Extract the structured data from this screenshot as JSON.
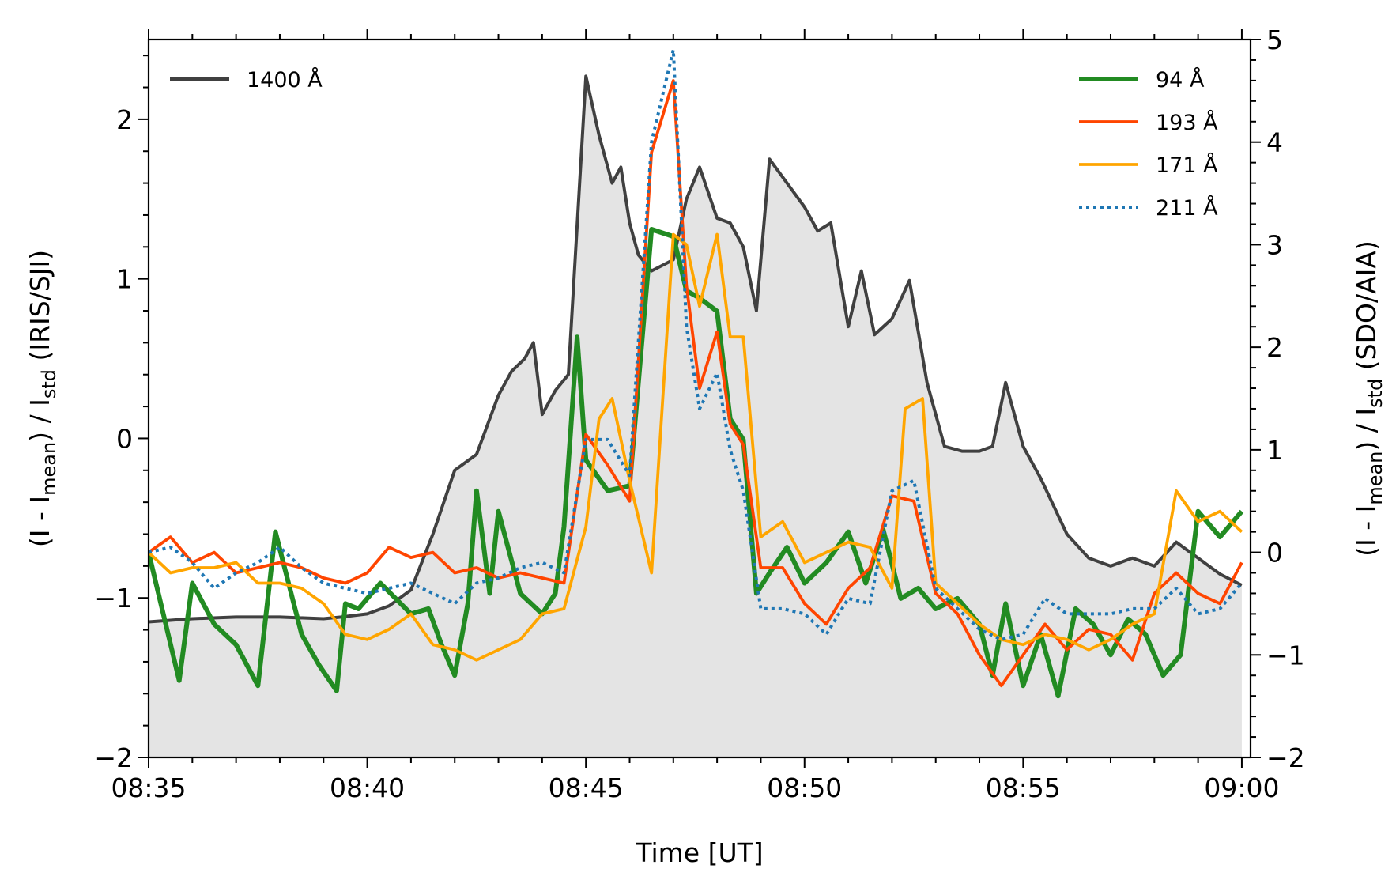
{
  "chart_data": {
    "type": "line",
    "xlabel": "Time [UT]",
    "ylabel_left": {
      "main": "(I - I",
      "sub1": "mean",
      "mid": ") / I",
      "sub2": "std",
      "end": " (IRIS/SJI)"
    },
    "ylabel_right": {
      "main": "(I - I",
      "sub1": "mean",
      "mid": ") / I",
      "sub2": "std",
      "end": " (SDO/AIA)"
    },
    "x_range": [
      "08:35",
      "09:00"
    ],
    "x_ticks": [
      "08:35",
      "08:40",
      "08:45",
      "08:50",
      "08:55",
      "09:00"
    ],
    "y_left_range": [
      -2,
      2.5
    ],
    "y_left_ticks": [
      "−2",
      "−1",
      "0",
      "1",
      "2"
    ],
    "y_right_range": [
      -2,
      5
    ],
    "y_right_ticks": [
      "−2",
      "−1",
      "0",
      "1",
      "2",
      "3",
      "4",
      "5"
    ],
    "legend_left": {
      "position": "top-left",
      "entries": [
        "1400 Å"
      ]
    },
    "legend_right": {
      "position": "top-right",
      "entries": [
        "94 Å",
        "193 Å",
        "171 Å",
        "211 Å"
      ]
    },
    "colors": {
      "s1400": "#404040",
      "fill1400": "#e4e4e4",
      "s94": "#228b22",
      "s193": "#ff4500",
      "s171": "#ffa500",
      "s211": "#1f77b4"
    },
    "series": [
      {
        "name": "1400 Å",
        "axis": "left",
        "fill": true,
        "x": [
          "08:35",
          "08:36",
          "08:37",
          "08:38",
          "08:39",
          "08:39.4",
          "08:40",
          "08:40.5",
          "08:41",
          "08:41.5",
          "08:42",
          "08:42.5",
          "08:43",
          "08:43.3",
          "08:43.6",
          "08:43.8",
          "08:44",
          "08:44.3",
          "08:44.6",
          "08:45",
          "08:45.3",
          "08:45.6",
          "08:45.8",
          "08:46",
          "08:46.2",
          "08:46.5",
          "08:47",
          "08:47.3",
          "08:47.6",
          "08:48",
          "08:48.3",
          "08:48.6",
          "08:48.9",
          "08:49.2",
          "08:49.6",
          "08:50",
          "08:50.3",
          "08:50.6",
          "08:51",
          "08:51.3",
          "08:51.6",
          "08:52",
          "08:52.4",
          "08:52.8",
          "08:53.2",
          "08:53.6",
          "08:54",
          "08:54.3",
          "08:54.6",
          "08:55",
          "08:55.4",
          "08:56",
          "08:56.5",
          "08:57",
          "08:57.5",
          "08:58",
          "08:58.5",
          "08:59",
          "08:59.5",
          "09:00"
        ],
        "y": [
          -1.15,
          -1.13,
          -1.12,
          -1.12,
          -1.13,
          -1.12,
          -1.1,
          -1.05,
          -0.95,
          -0.6,
          -0.2,
          -0.1,
          0.27,
          0.42,
          0.5,
          0.6,
          0.15,
          0.3,
          0.4,
          2.27,
          1.9,
          1.6,
          1.7,
          1.35,
          1.15,
          1.05,
          1.12,
          1.5,
          1.7,
          1.38,
          1.35,
          1.2,
          0.8,
          1.75,
          1.6,
          1.45,
          1.3,
          1.35,
          0.7,
          1.05,
          0.65,
          0.75,
          0.99,
          0.35,
          -0.05,
          -0.08,
          -0.08,
          -0.05,
          0.35,
          -0.05,
          -0.25,
          -0.6,
          -0.75,
          -0.8,
          -0.75,
          -0.8,
          -0.65,
          -0.75,
          -0.85,
          -0.92
        ]
      },
      {
        "name": "94 Å",
        "axis": "right",
        "x": [
          "08:35",
          "08:35.7",
          "08:36",
          "08:36.5",
          "08:37",
          "08:37.5",
          "08:37.9",
          "08:38.5",
          "08:38.9",
          "08:39.3",
          "08:39.5",
          "08:39.8",
          "08:40.3",
          "08:41",
          "08:41.4",
          "08:41.7",
          "08:42",
          "08:42.3",
          "08:42.5",
          "08:42.8",
          "08:43",
          "08:43.5",
          "08:44",
          "08:44.3",
          "08:44.5",
          "08:44.8",
          "08:45",
          "08:45.5",
          "08:46",
          "08:46.5",
          "08:47",
          "08:47.3",
          "08:47.6",
          "08:48",
          "08:48.3",
          "08:48.6",
          "08:48.9",
          "08:49.2",
          "08:49.6",
          "08:50",
          "08:50.5",
          "08:51",
          "08:51.4",
          "08:51.8",
          "08:52.2",
          "08:52.6",
          "08:53",
          "08:53.5",
          "08:54",
          "08:54.3",
          "08:54.6",
          "08:55",
          "08:55.4",
          "08:55.8",
          "08:56.2",
          "08:56.6",
          "08:57",
          "08:57.4",
          "08:57.8",
          "08:58.2",
          "08:58.6",
          "08:59",
          "08:59.5",
          "09:00"
        ],
        "y": [
          0,
          -1.25,
          -0.3,
          -0.7,
          -0.9,
          -1.3,
          0.2,
          -0.8,
          -1.1,
          -1.35,
          -0.5,
          -0.55,
          -0.3,
          -0.6,
          -0.55,
          -0.9,
          -1.2,
          -0.5,
          0.6,
          -0.4,
          0.4,
          -0.4,
          -0.6,
          -0.4,
          0.25,
          2.1,
          0.9,
          0.6,
          0.65,
          3.15,
          3.08,
          2.55,
          2.48,
          2.35,
          1.3,
          1.1,
          -0.4,
          -0.2,
          0.05,
          -0.3,
          -0.1,
          0.2,
          -0.3,
          0.22,
          -0.45,
          -0.35,
          -0.55,
          -0.45,
          -0.7,
          -1.2,
          -0.5,
          -1.3,
          -0.8,
          -1.4,
          -0.55,
          -0.7,
          -1.0,
          -0.65,
          -0.8,
          -1.2,
          -1.0,
          0.4,
          0.15,
          0.4
        ]
      },
      {
        "name": "193 Å",
        "axis": "right",
        "x": [
          "08:35",
          "08:35.5",
          "08:36",
          "08:36.5",
          "08:37",
          "08:37.5",
          "08:38",
          "08:38.5",
          "08:39",
          "08:39.5",
          "08:40",
          "08:40.5",
          "08:41",
          "08:41.5",
          "08:42",
          "08:42.5",
          "08:43",
          "08:43.5",
          "08:44",
          "08:44.5",
          "08:45",
          "08:45.5",
          "08:46",
          "08:46.5",
          "08:47",
          "08:47.3",
          "08:47.6",
          "08:48",
          "08:48.3",
          "08:48.6",
          "08:49",
          "08:49.5",
          "08:50",
          "08:50.5",
          "08:51",
          "08:51.5",
          "08:52",
          "08:52.5",
          "08:53",
          "08:53.5",
          "08:54",
          "08:54.5",
          "08:55",
          "08:55.5",
          "08:56",
          "08:56.5",
          "08:57",
          "08:57.5",
          "08:58",
          "08:58.5",
          "08:59",
          "08:59.5",
          "09:00"
        ],
        "y": [
          0,
          0.15,
          -0.1,
          0,
          -0.2,
          -0.15,
          -0.1,
          -0.15,
          -0.25,
          -0.3,
          -0.2,
          0.05,
          -0.05,
          0,
          -0.2,
          -0.15,
          -0.25,
          -0.2,
          -0.25,
          -0.3,
          1.15,
          0.85,
          0.5,
          3.9,
          4.6,
          2.6,
          1.6,
          2.15,
          1.25,
          1.05,
          -0.15,
          -0.15,
          -0.5,
          -0.7,
          -0.35,
          -0.15,
          0.55,
          0.5,
          -0.4,
          -0.6,
          -1.0,
          -1.3,
          -1.0,
          -0.7,
          -0.95,
          -0.75,
          -0.8,
          -1.05,
          -0.4,
          -0.2,
          -0.4,
          -0.5,
          -0.1
        ]
      },
      {
        "name": "171 Å",
        "axis": "right",
        "x": [
          "08:35",
          "08:35.5",
          "08:36",
          "08:36.5",
          "08:37",
          "08:37.5",
          "08:38",
          "08:38.5",
          "08:39",
          "08:39.5",
          "08:40",
          "08:40.5",
          "08:41",
          "08:41.5",
          "08:42",
          "08:42.5",
          "08:43",
          "08:43.5",
          "08:44",
          "08:44.5",
          "08:45",
          "08:45.3",
          "08:45.6",
          "08:46",
          "08:46.5",
          "08:47",
          "08:47.3",
          "08:47.6",
          "08:48",
          "08:48.3",
          "08:48.6",
          "08:49",
          "08:49.5",
          "08:50",
          "08:50.5",
          "08:51",
          "08:51.5",
          "08:52",
          "08:52.3",
          "08:52.7",
          "08:53",
          "08:53.5",
          "08:54",
          "08:54.5",
          "08:55",
          "08:55.5",
          "08:56",
          "08:56.5",
          "08:57",
          "08:57.5",
          "08:58",
          "08:58.5",
          "08:59",
          "08:59.5",
          "09:00"
        ],
        "y": [
          0,
          -0.2,
          -0.15,
          -0.15,
          -0.1,
          -0.3,
          -0.3,
          -0.35,
          -0.5,
          -0.8,
          -0.85,
          -0.75,
          -0.6,
          -0.9,
          -0.95,
          -1.05,
          -0.95,
          -0.85,
          -0.6,
          -0.55,
          0.25,
          1.3,
          1.5,
          0.7,
          -0.2,
          3.1,
          3.0,
          2.4,
          3.1,
          2.1,
          2.1,
          0.15,
          0.3,
          -0.1,
          0.0,
          0.1,
          0.05,
          -0.35,
          1.4,
          1.5,
          -0.3,
          -0.5,
          -0.7,
          -0.85,
          -0.9,
          -0.8,
          -0.85,
          -0.95,
          -0.85,
          -0.7,
          -0.6,
          0.6,
          0.3,
          0.4,
          0.2
        ]
      },
      {
        "name": "211 Å",
        "axis": "right",
        "x": [
          "08:35",
          "08:35.5",
          "08:36",
          "08:36.5",
          "08:37",
          "08:37.5",
          "08:38",
          "08:38.5",
          "08:39",
          "08:39.5",
          "08:40",
          "08:40.5",
          "08:41",
          "08:41.5",
          "08:42",
          "08:42.5",
          "08:43",
          "08:43.5",
          "08:44",
          "08:44.5",
          "08:45",
          "08:45.5",
          "08:46",
          "08:46.5",
          "08:47",
          "08:47.3",
          "08:47.6",
          "08:48",
          "08:48.3",
          "08:48.6",
          "08:49",
          "08:49.5",
          "08:50",
          "08:50.5",
          "08:51",
          "08:51.5",
          "08:52",
          "08:52.5",
          "08:53",
          "08:53.5",
          "08:54",
          "08:54.5",
          "08:55",
          "08:55.5",
          "08:56",
          "08:56.5",
          "08:57",
          "08:57.5",
          "08:58",
          "08:58.5",
          "08:59",
          "08:59.5",
          "09:00"
        ],
        "y": [
          0,
          0.05,
          -0.1,
          -0.35,
          -0.2,
          -0.1,
          0.05,
          -0.15,
          -0.3,
          -0.35,
          -0.4,
          -0.35,
          -0.3,
          -0.4,
          -0.5,
          -0.3,
          -0.25,
          -0.15,
          -0.1,
          -0.2,
          1.1,
          1.1,
          0.75,
          4.0,
          4.9,
          2.2,
          1.4,
          1.75,
          1.0,
          0.6,
          -0.55,
          -0.55,
          -0.6,
          -0.8,
          -0.45,
          -0.5,
          0.6,
          0.7,
          -0.35,
          -0.55,
          -0.75,
          -0.85,
          -0.8,
          -0.45,
          -0.6,
          -0.6,
          -0.6,
          -0.55,
          -0.55,
          -0.35,
          -0.6,
          -0.55,
          -0.3
        ]
      }
    ]
  }
}
